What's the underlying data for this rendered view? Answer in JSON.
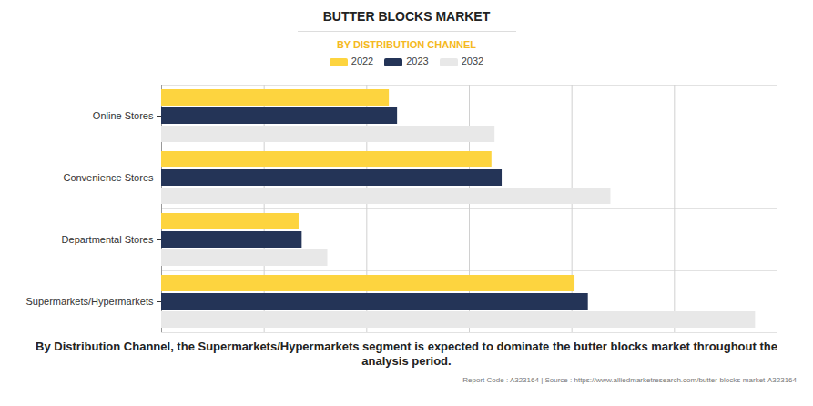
{
  "chart_data": {
    "type": "bar",
    "orientation": "horizontal",
    "title": "BUTTER BLOCKS MARKET",
    "subtitle": "BY DISTRIBUTION CHANNEL",
    "caption": "By Distribution Channel, the Supermarkets/Hypermarkets segment is expected to dominate the butter blocks market throughout the analysis period.",
    "source": "Report Code : A323164  |  Source : https://www.alliedmarketresearch.com/butter-blocks-market-A323164",
    "categories": [
      "Online Stores",
      "Convenience Stores",
      "Departmental Stores",
      "Supermarkets/Hypermarkets"
    ],
    "series": [
      {
        "name": "2022",
        "color": "#fdd43f",
        "values": [
          2.22,
          3.22,
          1.34,
          4.03
        ]
      },
      {
        "name": "2023",
        "color": "#243457",
        "values": [
          2.3,
          3.32,
          1.37,
          4.16
        ]
      },
      {
        "name": "2032",
        "color": "#e8e8e8",
        "values": [
          3.25,
          4.38,
          1.62,
          5.79
        ]
      }
    ],
    "xlim": [
      0,
      6
    ],
    "xticks": [
      0,
      1,
      2,
      3,
      4,
      5,
      6
    ],
    "grid": true,
    "tick_labels": "y",
    "legend": "top",
    "data_labels": false
  }
}
